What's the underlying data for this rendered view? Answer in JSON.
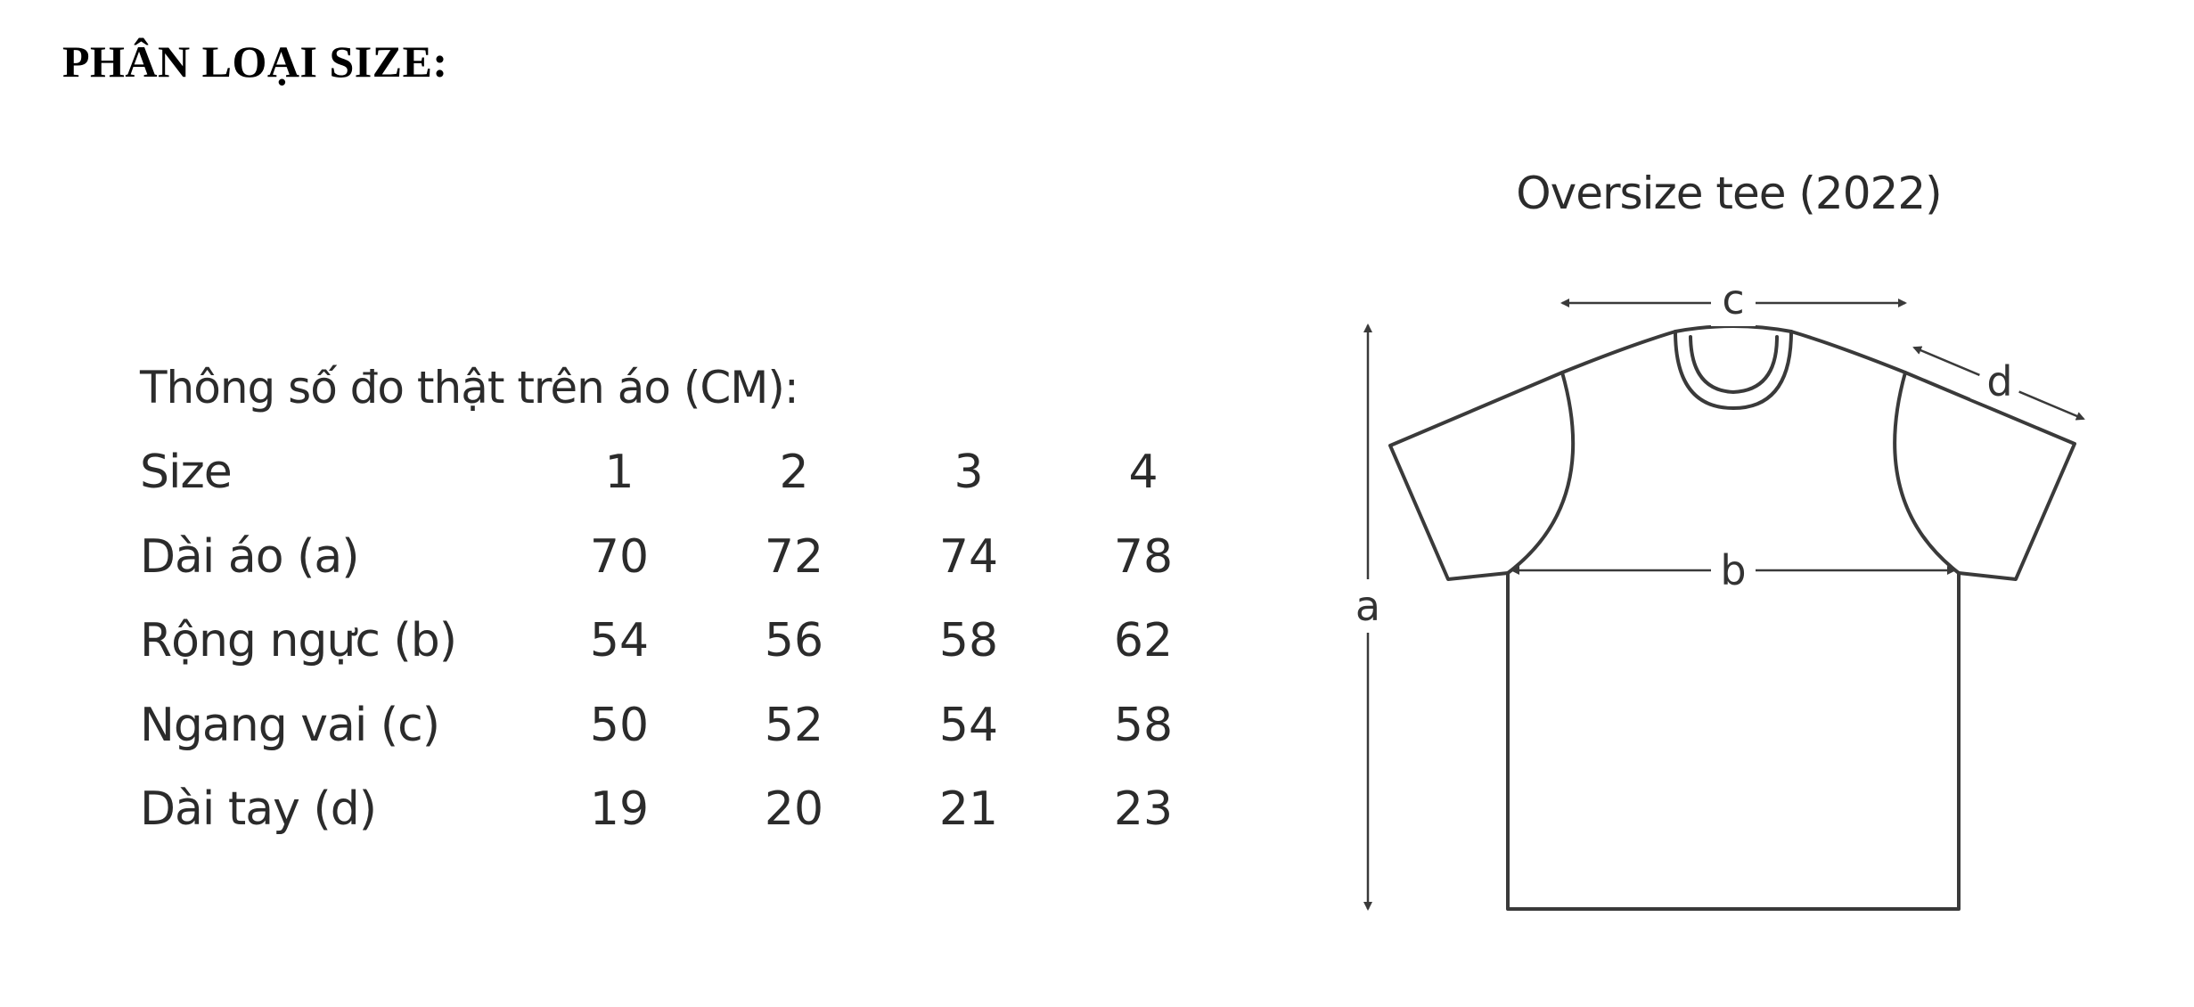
{
  "heading": "PHÂN LOẠI SIZE:",
  "table": {
    "caption": "Thông số đo thật trên áo (CM):",
    "header": {
      "label": "Size",
      "sizes": [
        "1",
        "2",
        "3",
        "4"
      ]
    },
    "rows": [
      {
        "label": "Dài áo (a)",
        "values": [
          "70",
          "72",
          "74",
          "78"
        ]
      },
      {
        "label": "Rộng ngực (b)",
        "values": [
          "54",
          "56",
          "58",
          "62"
        ]
      },
      {
        "label": "Ngang vai (c)",
        "values": [
          "50",
          "52",
          "54",
          "58"
        ]
      },
      {
        "label": "Dài tay (d)",
        "values": [
          "19",
          "20",
          "21",
          "23"
        ]
      }
    ]
  },
  "diagram": {
    "title": "Oversize tee (2022)",
    "labels": {
      "a": "a",
      "b": "b",
      "c": "c",
      "d": "d"
    },
    "line_color": "#3a3a3a"
  }
}
